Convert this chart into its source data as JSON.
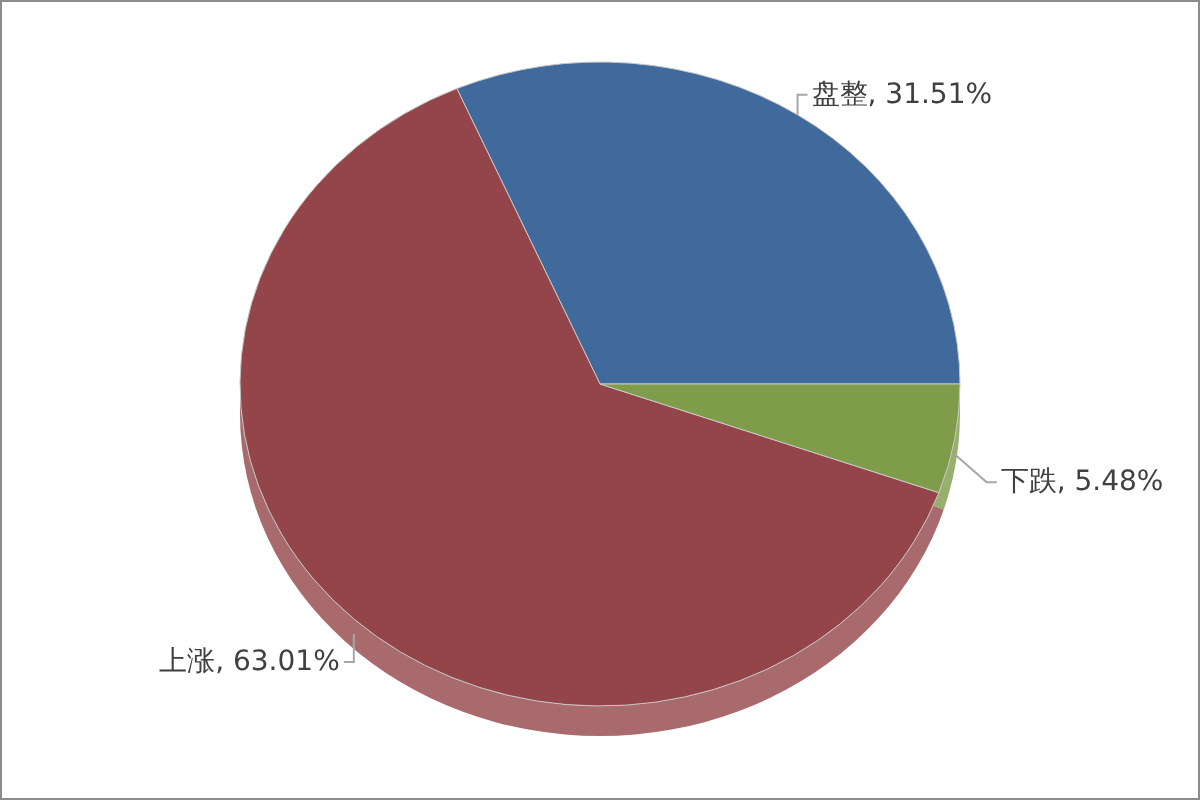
{
  "chart_data": {
    "type": "pie",
    "categories": [
      "盘整",
      "上涨",
      "下跌"
    ],
    "values": [
      31.51,
      63.01,
      5.48
    ],
    "colors": [
      "#40699c",
      "#93454a",
      "#7e9c4a"
    ],
    "value_labels": [
      "31.51%",
      "63.01%",
      "5.48%"
    ]
  }
}
